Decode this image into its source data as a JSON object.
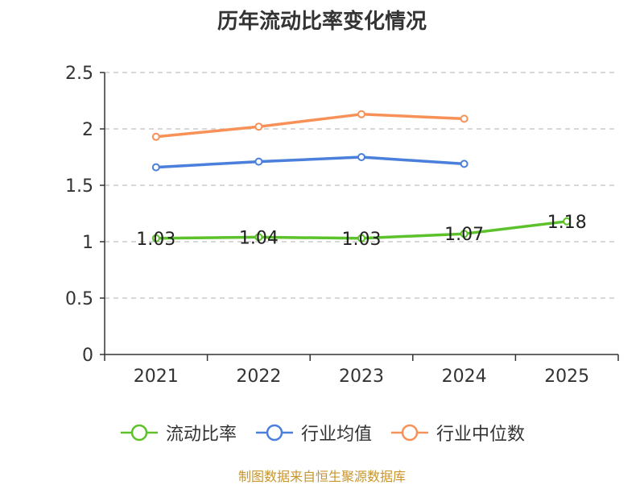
{
  "chart_data": {
    "type": "line",
    "title": "历年流动比率变化情况",
    "categories": [
      "2021",
      "2022",
      "2023",
      "2024",
      "2025"
    ],
    "ylim": [
      0,
      2.5
    ],
    "yticks": [
      0,
      0.5,
      1,
      1.5,
      2,
      2.5
    ],
    "ytick_labels": [
      "0",
      "0.5",
      "1",
      "1.5",
      "2",
      "2.5"
    ],
    "grid": "horizontal-dashed",
    "legend_position": "bottom",
    "series": [
      {
        "name": "流动比率",
        "color": "#5cc12b",
        "values": [
          1.03,
          1.04,
          1.03,
          1.07,
          1.18
        ],
        "labels": [
          "1.03",
          "1.04",
          "1.03",
          "1.07",
          "1.18"
        ]
      },
      {
        "name": "行业均值",
        "color": "#4a7fdc",
        "values": [
          1.66,
          1.71,
          1.75,
          1.69,
          null
        ]
      },
      {
        "name": "行业中位数",
        "color": "#f89157",
        "values": [
          1.93,
          2.02,
          2.13,
          2.09,
          null
        ]
      }
    ]
  },
  "source_text": "制图数据来自恒生聚源数据库"
}
